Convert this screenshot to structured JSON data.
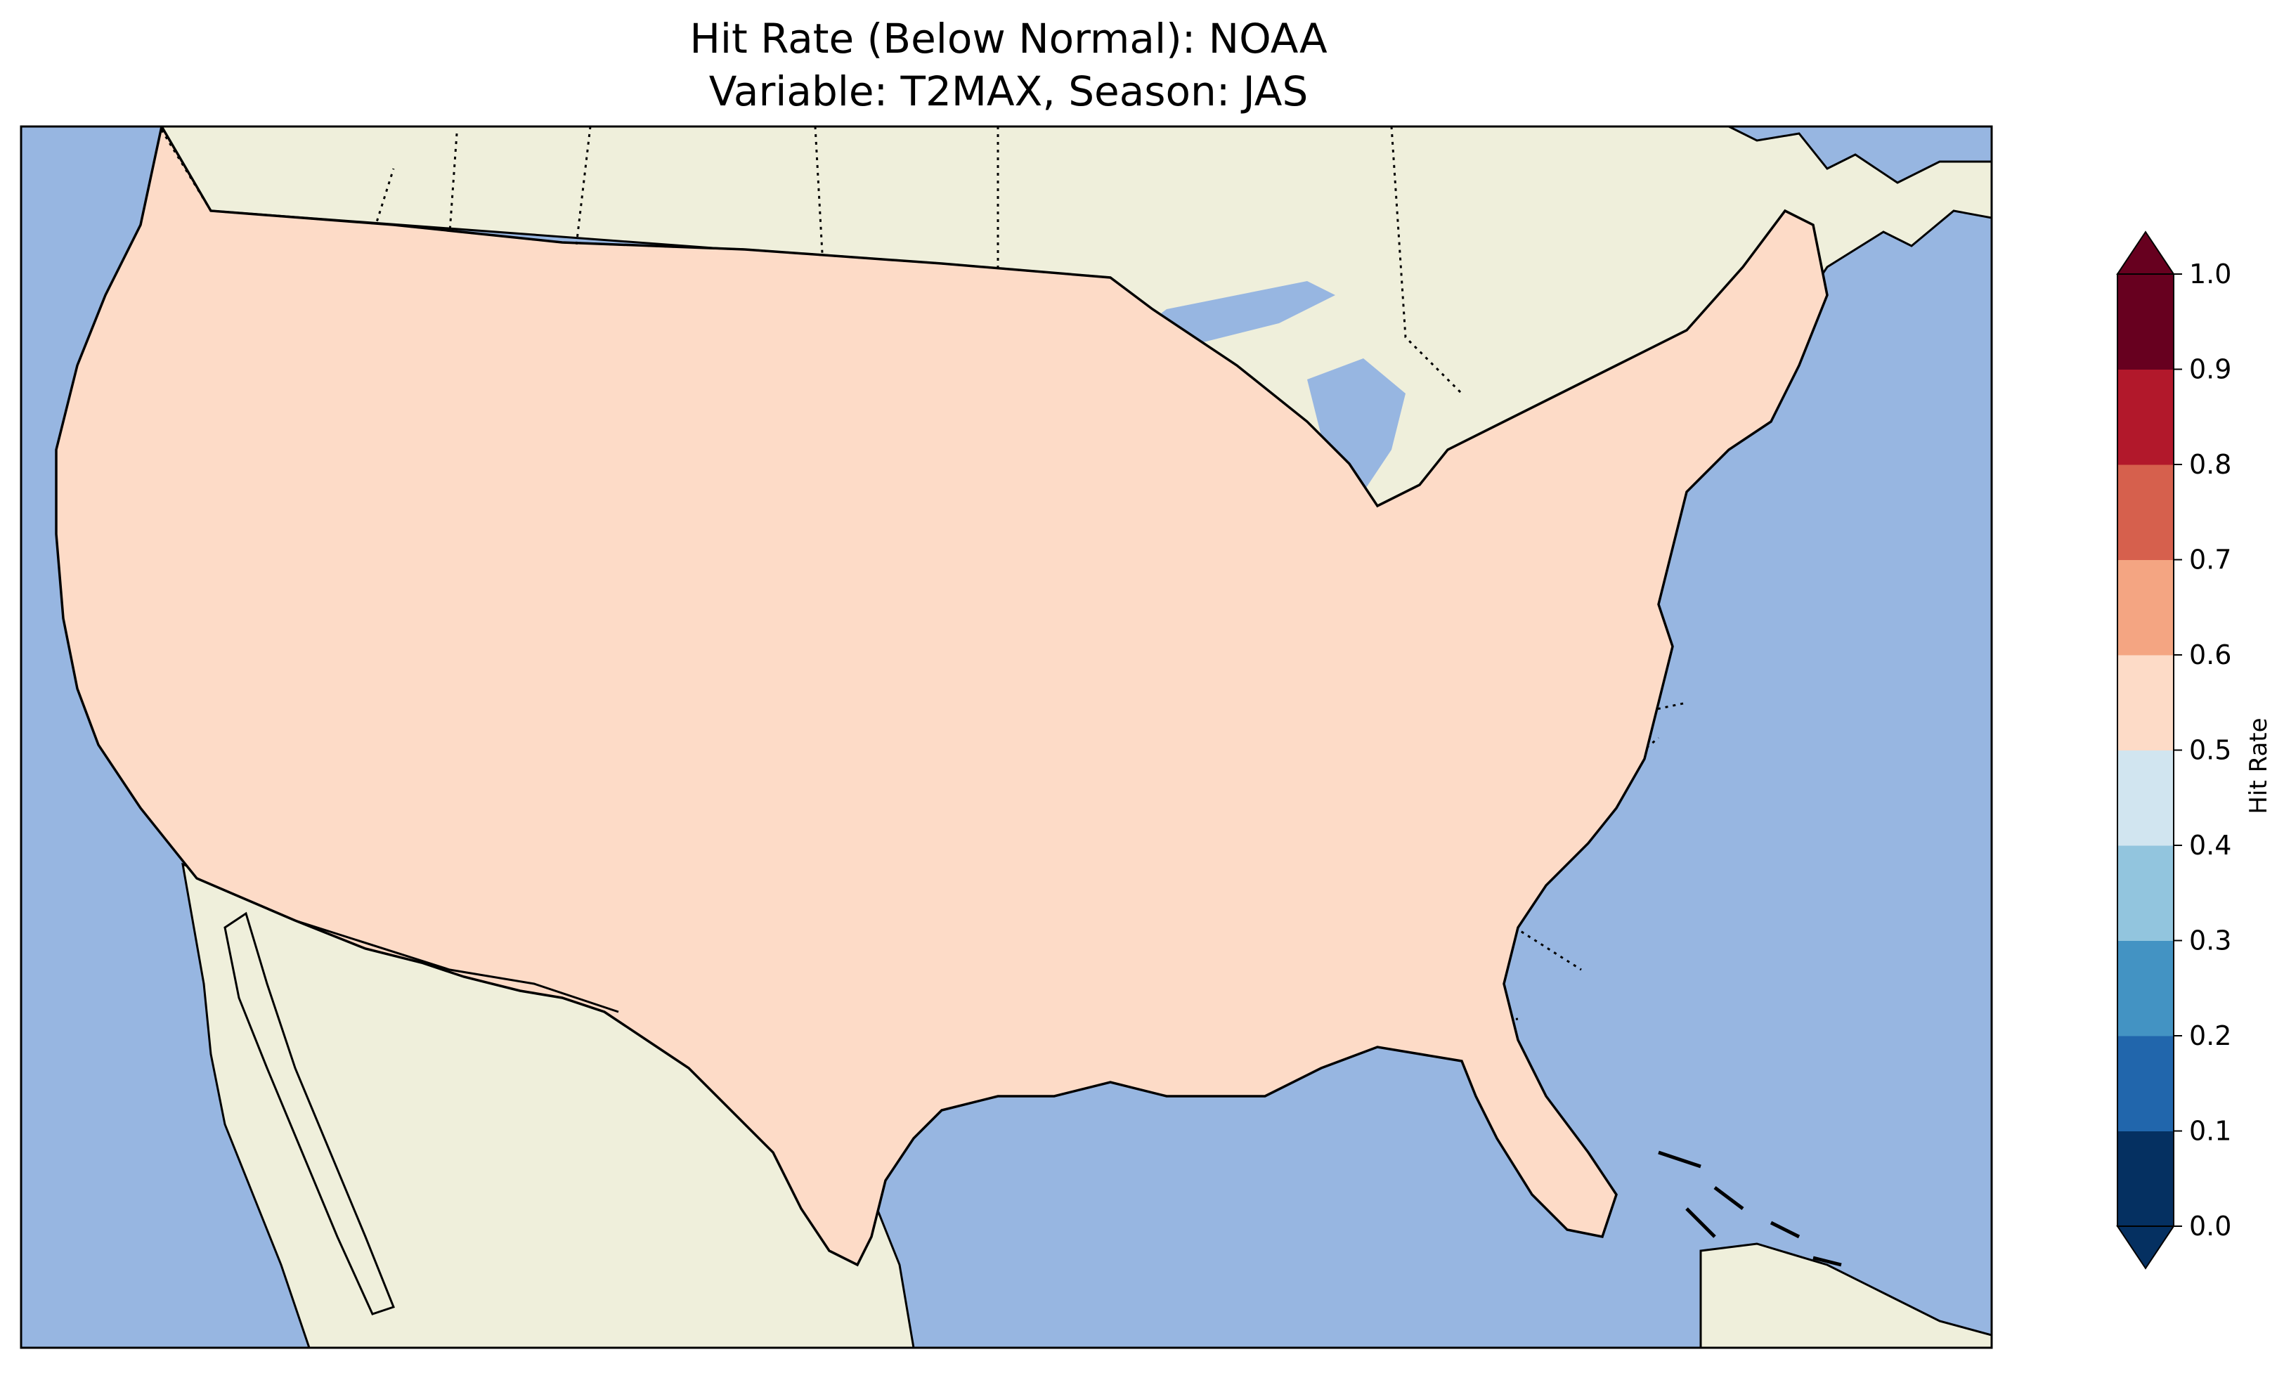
{
  "title": {
    "line1": "Hit Rate (Below Normal): NOAA",
    "line2": "Variable: T2MAX, Season: JAS"
  },
  "map": {
    "region": "Contiguous United States",
    "ocean_color": "#97b6e1",
    "land_color": "#efefdb",
    "border_style": "dotted"
  },
  "colorbar": {
    "label": "Hit Rate",
    "ticks": [
      "0.0",
      "0.1",
      "0.2",
      "0.3",
      "0.4",
      "0.5",
      "0.6",
      "0.7",
      "0.8",
      "0.9",
      "1.0"
    ],
    "colors": [
      "#053061",
      "#2166ac",
      "#4393c3",
      "#92c5de",
      "#d1e5f0",
      "#fddbc7",
      "#f4a582",
      "#d6604d",
      "#b2182b",
      "#67001f"
    ],
    "extend": "both"
  },
  "chart_data": {
    "type": "heatmap",
    "title": "Hit Rate (Below Normal): NOAA / Variable: T2MAX, Season: JAS",
    "colorbar_label": "Hit Rate",
    "vmin": 0.0,
    "vmax": 1.0,
    "levels": [
      0.0,
      0.1,
      0.2,
      0.3,
      0.4,
      0.5,
      0.6,
      0.7,
      0.8,
      0.9,
      1.0
    ]
  }
}
